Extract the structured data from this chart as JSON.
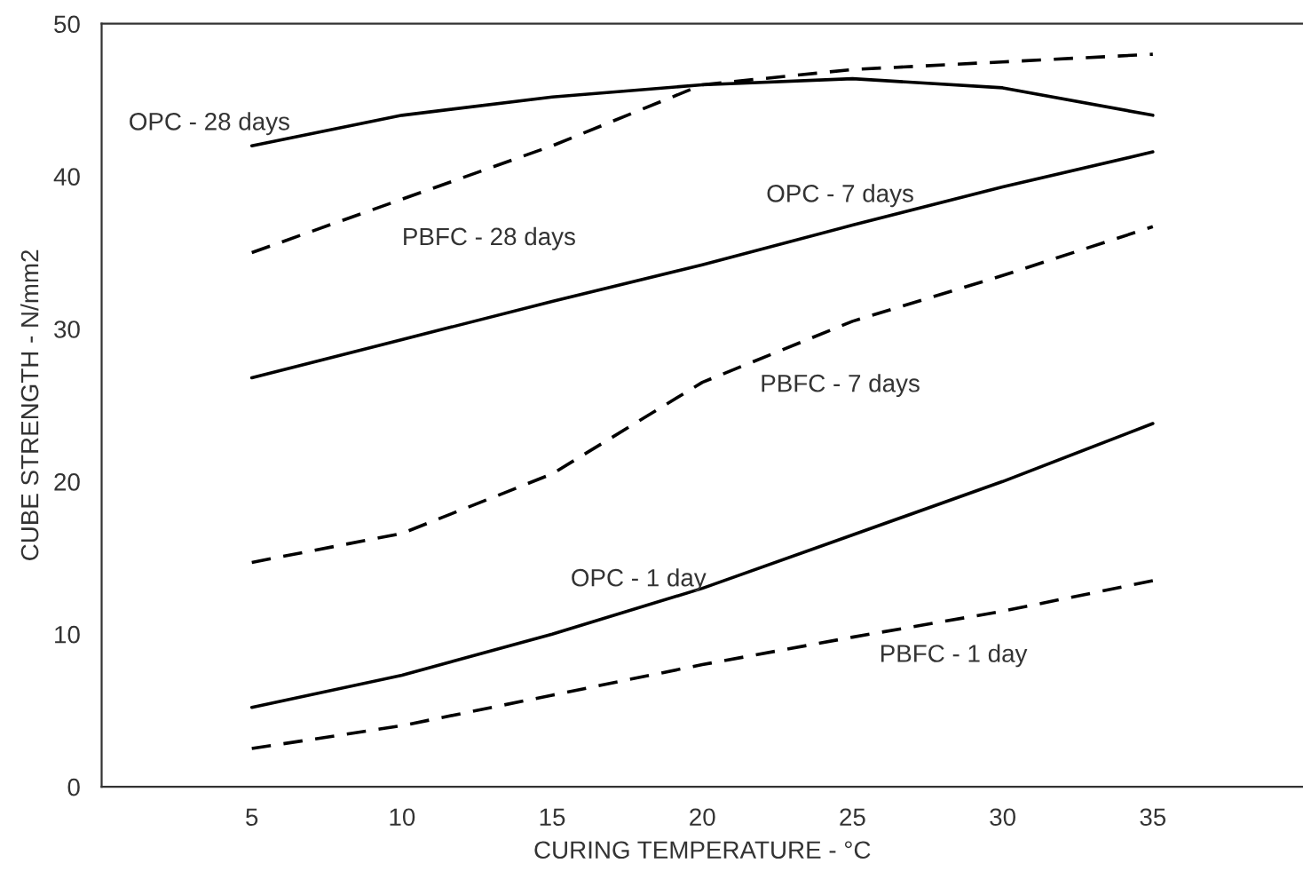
{
  "chart_data": {
    "type": "line",
    "xlabel": "CURING TEMPERATURE - °C",
    "ylabel": "CUBE STRENGTH - N/mm2",
    "x": [
      5,
      10,
      15,
      20,
      25,
      30,
      35
    ],
    "xlim": [
      0,
      40
    ],
    "xticks": [
      5,
      10,
      15,
      20,
      25,
      30,
      35
    ],
    "ylim": [
      0,
      50
    ],
    "yticks": [
      0,
      10,
      20,
      30,
      40,
      50
    ],
    "grid": false,
    "legend": false,
    "marker": "none",
    "series": [
      {
        "name": "OPC - 28 days",
        "color": "#000000",
        "line_style": "solid",
        "values": [
          42,
          44,
          45.2,
          46,
          46.4,
          45.8,
          44
        ]
      },
      {
        "name": "PBFC - 28 days",
        "color": "#000000",
        "line_style": "dashed",
        "values": [
          35,
          38.5,
          42,
          46,
          47,
          47.5,
          48
        ]
      },
      {
        "name": "OPC - 7 days",
        "color": "#000000",
        "line_style": "solid",
        "values": [
          26.8,
          29.3,
          31.8,
          34.2,
          36.8,
          39.3,
          41.6
        ]
      },
      {
        "name": "PBFC - 7 days",
        "color": "#000000",
        "line_style": "dashed",
        "values": [
          14.7,
          16.6,
          20.5,
          26.5,
          30.5,
          33.5,
          36.7
        ]
      },
      {
        "name": "OPC - 1 day",
        "color": "#000000",
        "line_style": "solid",
        "values": [
          5.2,
          7.3,
          10,
          13,
          16.5,
          20,
          23.8
        ]
      },
      {
        "name": "PBFC - 1 day",
        "color": "#000000",
        "line_style": "dashed",
        "values": [
          2.5,
          4,
          6,
          8,
          9.8,
          11.5,
          13.5
        ]
      }
    ]
  }
}
